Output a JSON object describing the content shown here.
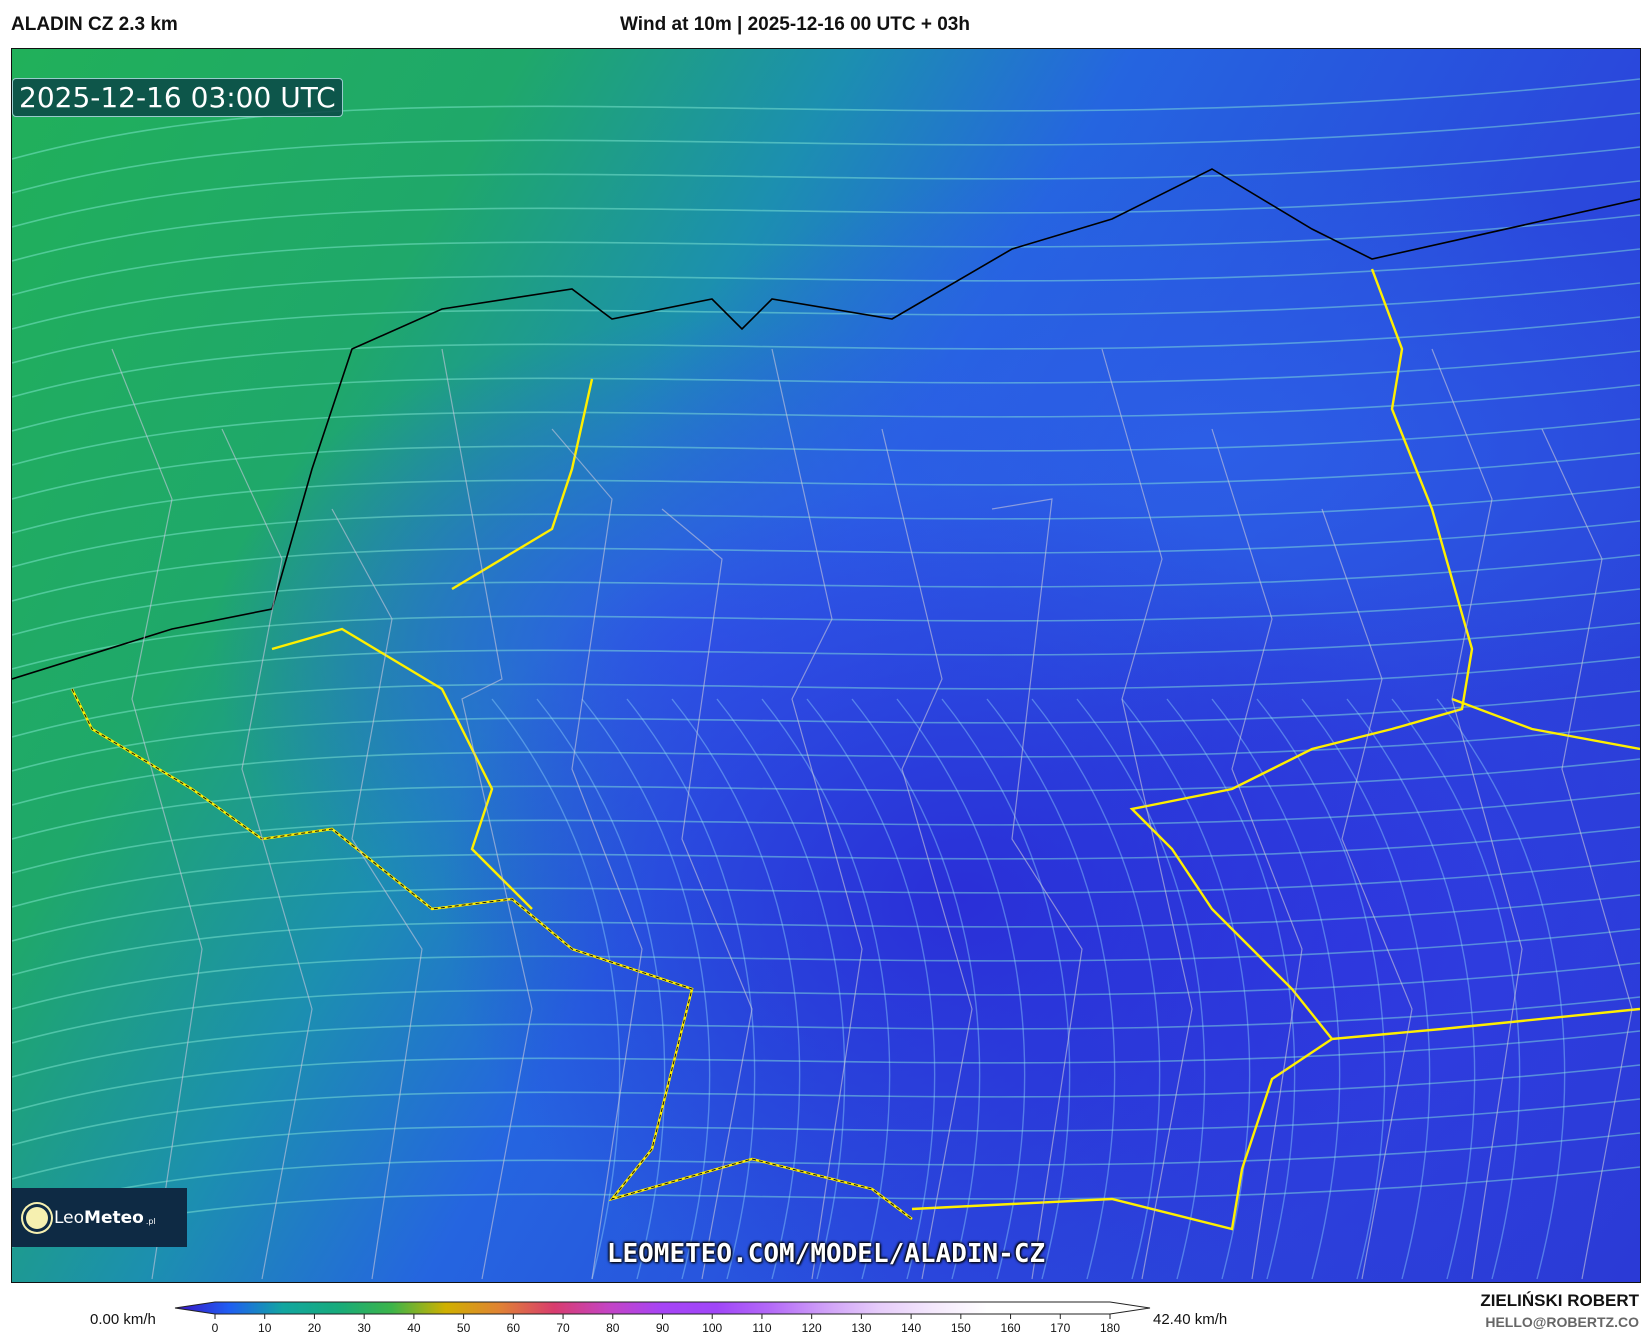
{
  "header": {
    "model": "ALADIN CZ 2.3 km",
    "title": "Wind at 10m | 2025-12-16 00 UTC + 03h"
  },
  "map": {
    "valid_time": "2025-12-16 03:00 UTC",
    "watermark": "LEOMETEO.COM/MODEL/ALADIN-CZ",
    "logo": {
      "text_light": "Leo",
      "text_bold": "Meteo",
      "suffix": ".pl",
      "icon": "sun-icon"
    }
  },
  "colorbar": {
    "min_label": "0.00 km/h",
    "max_label": "42.40 km/h",
    "ticks": [
      "0",
      "10",
      "20",
      "30",
      "40",
      "50",
      "60",
      "70",
      "80",
      "90",
      "100",
      "110",
      "120",
      "130",
      "140",
      "150",
      "160",
      "170",
      "180"
    ],
    "colors": [
      "#3a12c4",
      "#1f5ef2",
      "#12a6a0",
      "#17ab7c",
      "#3cb44a",
      "#d0b000",
      "#e08234",
      "#d83c6e",
      "#c444c4",
      "#a644f6",
      "#a046f8",
      "#b46af8",
      "#cfa0f8",
      "#e6ccfa",
      "#f4e8fc",
      "#ffffff",
      "#ffffff",
      "#ffffff",
      "#ffffff"
    ]
  },
  "author": {
    "name": "ZIELIŃSKI ROBERT",
    "email": "HELLO@ROBERTZ.CO"
  }
}
